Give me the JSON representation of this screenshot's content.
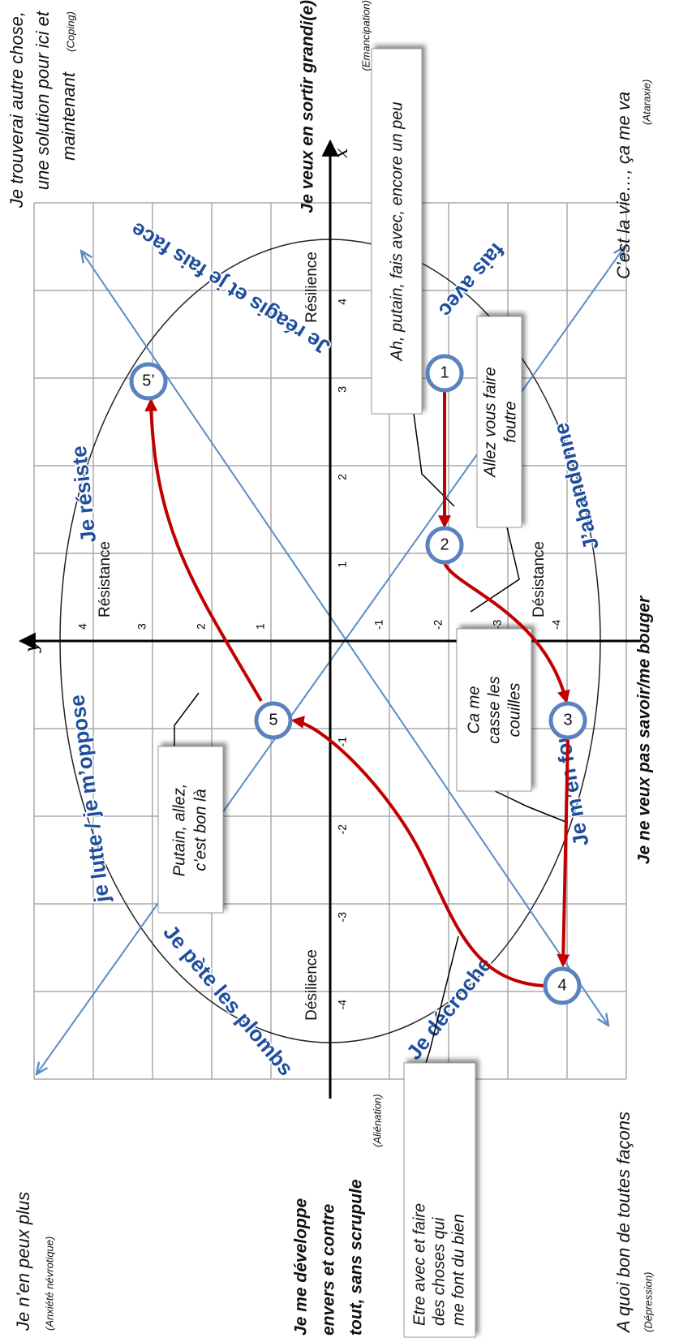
{
  "axes": {
    "x_label": "x",
    "y_label": "y",
    "xlim": [
      -5,
      5
    ],
    "ylim": [
      -5,
      5
    ],
    "xticks": [
      -4,
      -3,
      -2,
      -1,
      1,
      2,
      3,
      4
    ],
    "yticks": [
      -4,
      -3,
      -2,
      -1,
      1,
      2,
      3,
      4
    ]
  },
  "poles": {
    "right": {
      "text": "Je veux en sortir grandi(e)",
      "note": "(Emancipation)"
    },
    "left": {
      "lines": [
        "Je me développe",
        "envers et contre",
        "tout, sans scrupule"
      ],
      "note": "(Aliénation)"
    },
    "bottom": {
      "text": "Je ne veux pas savoir/me bouger"
    }
  },
  "corners": {
    "top_right": {
      "lines": [
        "Je trouverai autre chose,",
        "une solution pour ici et",
        "maintenant"
      ],
      "note": "(Coping)"
    },
    "bottom_right": {
      "text": "C’est la vie…, ça me va",
      "note": "(Ataraxie)"
    },
    "top_left": {
      "text": "Je n’en peux plus",
      "note": "(Anxiété névrotique)"
    },
    "bottom_left": {
      "text": "A quoi bon de toutes façons",
      "note": "(Dépression)"
    }
  },
  "quadrants": {
    "resilience": "Résilience",
    "resistance": "Résistance",
    "desistance": "Désistance",
    "desilience": "Désilience"
  },
  "arc_labels": {
    "reagis": "Je réagis et je fais face",
    "resiste": "Je résiste",
    "lutte": "je lutte / je m’oppose",
    "plombs": "Je pète les plombs",
    "decroche": "Je décroche",
    "fous": "Je m’en fous",
    "abandonne": "J’abandonne",
    "fais_avec": "fais avec"
  },
  "nodes": [
    "1",
    "2",
    "3",
    "4",
    "5",
    "5’"
  ],
  "callouts": {
    "c1": "Ah, putain, fais avec, encore un peu",
    "c2": [
      "Allez vous faire",
      "foutre"
    ],
    "c3": [
      "Ca me",
      "casse les",
      "couilles"
    ],
    "c5": [
      "Putain, allez,",
      "c’est bon là"
    ],
    "c4": [
      "Etre avec et faire",
      "des choses qui",
      "me font du bien"
    ]
  }
}
